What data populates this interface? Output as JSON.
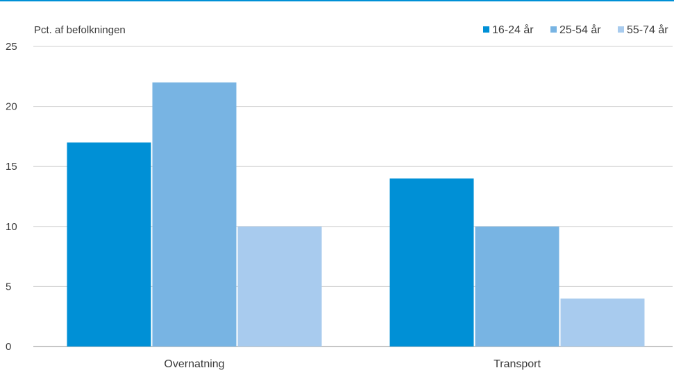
{
  "chart_data": {
    "type": "bar",
    "ylabel": "Pct. af befolkningen",
    "categories": [
      "Overnatning",
      "Transport"
    ],
    "series": [
      {
        "name": "16-24 år",
        "values": [
          17,
          14
        ],
        "color": "#0090d6"
      },
      {
        "name": "25-54 år",
        "values": [
          22,
          10
        ],
        "color": "#78b4e3"
      },
      {
        "name": "55-74 år",
        "values": [
          10,
          4
        ],
        "color": "#a8cbee"
      }
    ],
    "ylim": [
      0,
      25
    ],
    "yticks": [
      "0",
      "5",
      "10",
      "15",
      "20",
      "25"
    ],
    "grid": true,
    "legend_position": "top-right"
  }
}
